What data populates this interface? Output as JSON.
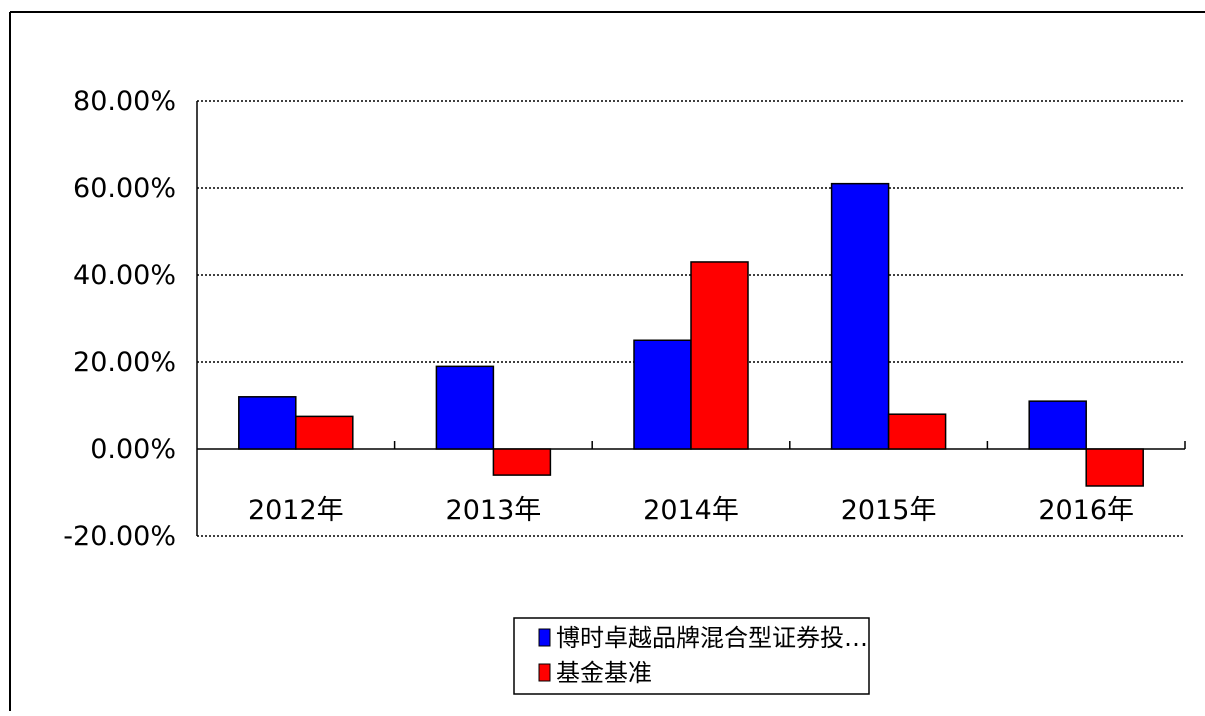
{
  "chart_data": {
    "type": "bar",
    "categories": [
      "2012年",
      "2013年",
      "2014年",
      "2015年",
      "2016年"
    ],
    "series": [
      {
        "name": "博时卓越品牌混合型证券投…",
        "color": "#0000ff",
        "values": [
          12.0,
          19.0,
          25.0,
          61.0,
          11.0
        ]
      },
      {
        "name": "基金基准",
        "color": "#ff0000",
        "values": [
          7.5,
          -6.0,
          43.0,
          8.0,
          -8.5
        ]
      }
    ],
    "y_ticks": [
      "80.00%",
      "60.00%",
      "40.00%",
      "20.00%",
      "0.00%",
      "-20.00%"
    ],
    "y_tick_values": [
      80,
      60,
      40,
      20,
      0,
      -20
    ],
    "ylim": [
      -20,
      80
    ],
    "grid": true,
    "legend_position": "bottom"
  }
}
